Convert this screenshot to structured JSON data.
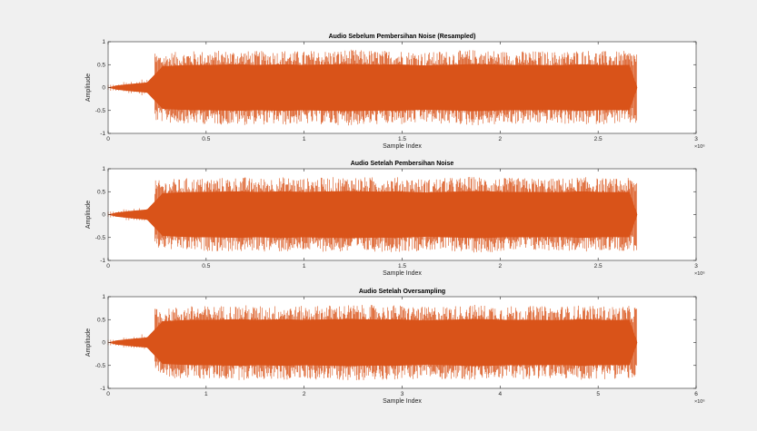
{
  "figure": {
    "background": "#f0f0f0",
    "axes_background": "#ffffff",
    "series_color": "#d95319"
  },
  "chart_data": [
    {
      "type": "line",
      "title": "Audio Sebelum Pembersihan Noise (Resampled)",
      "xlabel": "Sample Index",
      "ylabel": "Amplitude",
      "xlim": [
        0,
        3000000
      ],
      "ylim": [
        -1,
        1
      ],
      "x_ticks": [
        0,
        0.5,
        1,
        1.5,
        2,
        2.5,
        3
      ],
      "x_tick_labels": [
        "0",
        "0.5",
        "1",
        "1.5",
        "2",
        "2.5",
        "3"
      ],
      "x_exponent": "×10⁶",
      "y_ticks": [
        -1,
        -0.5,
        0,
        0.5,
        1
      ],
      "y_tick_labels": [
        "-1",
        "-0.5",
        "0",
        "0.5",
        "1"
      ],
      "grid": false,
      "series": [
        {
          "values": [
            0.07,
            0.13,
            0.18,
            0.75,
            0.78,
            0.8,
            0.8,
            0.81,
            0.82,
            0.8,
            0.81,
            0.82,
            0.8,
            0.81,
            0.82,
            0.83,
            0.82,
            0.81,
            0.82,
            0.8,
            0.78,
            0.8,
            0.81,
            0.83,
            0.82,
            0.8,
            0.8,
            0.8,
            0.79,
            0.8,
            0.82,
            0.8,
            0.79,
            0.8
          ],
          "sample_count": 2700000
        }
      ]
    },
    {
      "type": "line",
      "title": "Audio Setelah Pembersihan Noise",
      "xlabel": "Sample Index",
      "ylabel": "Amplitude",
      "xlim": [
        0,
        3000000
      ],
      "ylim": [
        -1,
        1
      ],
      "x_ticks": [
        0,
        0.5,
        1,
        1.5,
        2,
        2.5,
        3
      ],
      "x_tick_labels": [
        "0",
        "0.5",
        "1",
        "1.5",
        "2",
        "2.5",
        "3"
      ],
      "x_exponent": "×10⁶",
      "y_ticks": [
        -1,
        -0.5,
        0,
        0.5,
        1
      ],
      "y_tick_labels": [
        "-1",
        "-0.5",
        "0",
        "0.5",
        "1"
      ],
      "grid": false,
      "series": [
        {
          "values": [
            0.07,
            0.13,
            0.18,
            0.75,
            0.78,
            0.8,
            0.8,
            0.81,
            0.82,
            0.8,
            0.81,
            0.82,
            0.8,
            0.81,
            0.82,
            0.83,
            0.82,
            0.81,
            0.82,
            0.8,
            0.78,
            0.8,
            0.81,
            0.83,
            0.82,
            0.8,
            0.8,
            0.8,
            0.79,
            0.8,
            0.82,
            0.8,
            0.79,
            0.8
          ],
          "sample_count": 2700000
        }
      ]
    },
    {
      "type": "line",
      "title": "Audio Setelah Oversampling",
      "xlabel": "Sample Index",
      "ylabel": "Amplitude",
      "xlim": [
        0,
        6000000
      ],
      "ylim": [
        -1,
        1
      ],
      "x_ticks": [
        0,
        1,
        2,
        3,
        4,
        5,
        6
      ],
      "x_tick_labels": [
        "0",
        "1",
        "2",
        "3",
        "4",
        "5",
        "6"
      ],
      "x_exponent": "×10⁶",
      "y_ticks": [
        -1,
        -0.5,
        0,
        0.5,
        1
      ],
      "y_tick_labels": [
        "-1",
        "-0.5",
        "0",
        "0.5",
        "1"
      ],
      "grid": false,
      "series": [
        {
          "values": [
            0.07,
            0.13,
            0.18,
            0.75,
            0.78,
            0.8,
            0.8,
            0.81,
            0.82,
            0.8,
            0.81,
            0.82,
            0.8,
            0.81,
            0.82,
            0.83,
            0.82,
            0.81,
            0.82,
            0.8,
            0.78,
            0.8,
            0.81,
            0.83,
            0.82,
            0.8,
            0.8,
            0.8,
            0.79,
            0.8,
            0.82,
            0.8,
            0.79,
            0.8
          ],
          "sample_count": 5400000
        }
      ]
    }
  ]
}
